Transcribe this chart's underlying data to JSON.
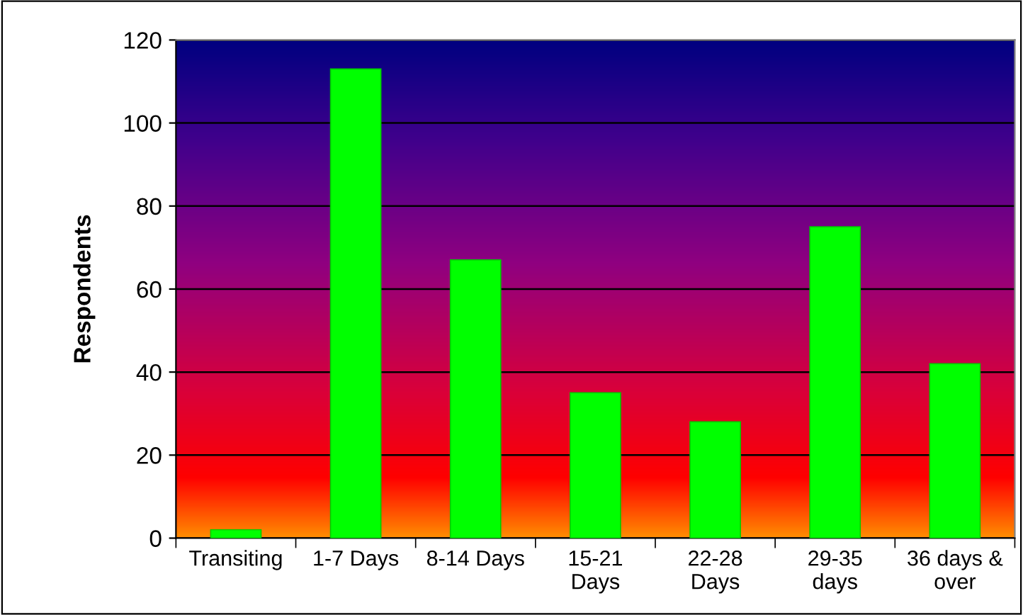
{
  "chart_data": {
    "type": "bar",
    "ylabel": "Respondents",
    "categories": [
      "Transiting",
      "1-7 Days",
      "8-14 Days",
      "15-21\nDays",
      "22-28\nDays",
      "29-35\ndays",
      "36 days &\nover"
    ],
    "values": [
      2,
      113,
      67,
      35,
      28,
      75,
      42
    ],
    "color": "#00ff00",
    "ylim": [
      0,
      120
    ],
    "yticks": [
      0,
      20,
      40,
      60,
      80,
      100,
      120
    ],
    "grid": "y"
  }
}
